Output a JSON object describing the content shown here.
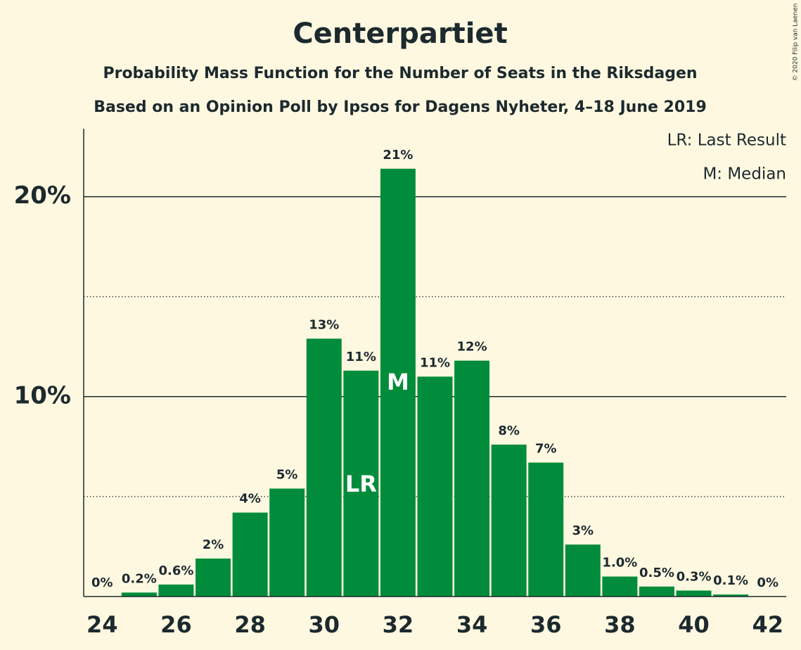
{
  "chart_data": {
    "type": "bar",
    "title": "Centerpartiet",
    "subtitle": "Probability Mass Function for the Number of Seats in the Riksdagen",
    "subtitle2": "Based on an Opinion Poll by Ipsos for Dagens Nyheter, 4–18 June 2019",
    "copyright": "© 2020 Filip van Laenen",
    "legend": [
      "LR: Last Result",
      "M: Median"
    ],
    "x": [
      24,
      25,
      26,
      27,
      28,
      29,
      30,
      31,
      32,
      33,
      34,
      35,
      36,
      37,
      38,
      39,
      40,
      41,
      42
    ],
    "values": [
      0,
      0.2,
      0.6,
      1.9,
      4.2,
      5.4,
      12.9,
      11.3,
      21.4,
      11.0,
      11.8,
      7.6,
      6.7,
      2.6,
      1.0,
      0.5,
      0.3,
      0.1,
      0
    ],
    "value_labels": [
      "0%",
      "0.2%",
      "0.6%",
      "2%",
      "4%",
      "5%",
      "13%",
      "11%",
      "21%",
      "11%",
      "12%",
      "8%",
      "7%",
      "3%",
      "1.0%",
      "0.5%",
      "0.3%",
      "0.1%",
      "0%"
    ],
    "color": "#008c3a",
    "xlim": [
      23.5,
      42.5
    ],
    "xticks": [
      24,
      26,
      28,
      30,
      32,
      34,
      36,
      38,
      40,
      42
    ],
    "ylim": [
      0,
      23.4
    ],
    "yticks": [
      {
        "value": 10,
        "label": "10%"
      },
      {
        "value": 20,
        "label": "20%"
      }
    ],
    "yminor": [
      5,
      15
    ],
    "annotations": [
      {
        "x": 31,
        "label": "LR"
      },
      {
        "x": 32,
        "label": "M"
      }
    ]
  }
}
